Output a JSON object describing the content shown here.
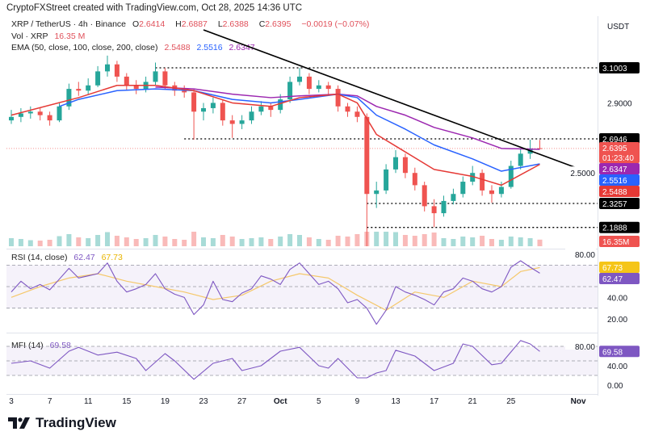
{
  "credit": "CryptoFXStreet created with TradingView.com, Oct 28, 2025 14:36 UTC",
  "currency": "USDT",
  "legend": {
    "symbol": "XRP / TetherUS · 4h · Binance",
    "o_label": "O",
    "o": "2.6414",
    "h_label": "H",
    "h": "2.6887",
    "l_label": "L",
    "l": "2.6388",
    "c_label": "C",
    "c": "2.6395",
    "change": "−0.0019 (−0.07%)",
    "vol_label": "Vol · XRP",
    "vol": "16.35 M",
    "ema_label": "EMA (50, close, 100, close, 200, close)",
    "ema50": "2.5488",
    "ema100": "2.5516",
    "ema200": "2.6347",
    "rsi_label": "RSI (14, close)",
    "rsi": "62.47",
    "rsi_ma": "67.73",
    "mfi_label": "MFI (14)",
    "mfi": "69.58"
  },
  "badges": {
    "level1": "3.1003",
    "level2": "2.6946",
    "last": "2.6395",
    "countdown": "01:23:40",
    "ema200": "2.6347",
    "ema100": "2.5516",
    "ema50": "2.5488",
    "level3": "2.3257",
    "level4": "2.1888",
    "volume": "16.35M",
    "rsi_ma": "67.73",
    "rsi": "62.47",
    "mfi": "69.58"
  },
  "logo_text": "TradingView",
  "colors": {
    "up": "#26a69a",
    "down": "#ef5350",
    "ema50": "#e53935",
    "ema100": "#2962ff",
    "ema200": "#9c27b0",
    "rsi": "#7e57c2",
    "rsi_ma": "#f5c86b",
    "trendline": "#000000"
  },
  "chart_data": {
    "type": "candlestick",
    "title": "XRP / TetherUS · 4h · Binance",
    "x_ticks": [
      [
        "2025-09-03",
        "3"
      ],
      [
        "2025-09-07",
        "7"
      ],
      [
        "2025-09-11",
        "11"
      ],
      [
        "2025-09-15",
        "15"
      ],
      [
        "2025-09-19",
        "19"
      ],
      [
        "2025-09-23",
        "23"
      ],
      [
        "2025-09-27",
        "27"
      ],
      [
        "2025-10-01",
        "Oct"
      ],
      [
        "2025-10-05",
        "5"
      ],
      [
        "2025-10-09",
        "9"
      ],
      [
        "2025-10-13",
        "13"
      ],
      [
        "2025-10-17",
        "17"
      ],
      [
        "2025-10-21",
        "21"
      ],
      [
        "2025-10-25",
        "25"
      ],
      [
        "2025-11-01",
        "Nov"
      ]
    ],
    "price_ticks": [
      "2.9000",
      "2.5000"
    ],
    "price_range": [
      2.08,
      3.386
    ],
    "start_date": "2025-09-03",
    "ohlc": [
      [
        2.8,
        2.86,
        2.78,
        2.82
      ],
      [
        2.82,
        2.87,
        2.79,
        2.84
      ],
      [
        2.84,
        2.88,
        2.81,
        2.85
      ],
      [
        2.85,
        2.87,
        2.8,
        2.83
      ],
      [
        2.83,
        2.85,
        2.77,
        2.8
      ],
      [
        2.8,
        2.9,
        2.79,
        2.88
      ],
      [
        2.88,
        3.01,
        2.86,
        2.98
      ],
      [
        2.98,
        3.02,
        2.94,
        2.97
      ],
      [
        2.97,
        3.04,
        2.95,
        3.0
      ],
      [
        3.0,
        3.11,
        2.99,
        3.08
      ],
      [
        3.08,
        3.17,
        3.05,
        3.12
      ],
      [
        3.12,
        3.14,
        3.02,
        3.05
      ],
      [
        3.05,
        3.07,
        2.97,
        3.0
      ],
      [
        3.0,
        3.03,
        2.95,
        2.98
      ],
      [
        2.98,
        3.05,
        2.96,
        3.02
      ],
      [
        3.02,
        3.13,
        3.0,
        3.08
      ],
      [
        3.08,
        3.1,
        2.98,
        3.0
      ],
      [
        3.0,
        3.02,
        2.94,
        2.97
      ],
      [
        2.97,
        3.0,
        2.93,
        2.96
      ],
      [
        2.96,
        2.98,
        2.69,
        2.85
      ],
      [
        2.85,
        2.9,
        2.8,
        2.87
      ],
      [
        2.87,
        2.93,
        2.84,
        2.9
      ],
      [
        2.9,
        2.92,
        2.77,
        2.8
      ],
      [
        2.8,
        2.83,
        2.7,
        2.78
      ],
      [
        2.78,
        2.83,
        2.75,
        2.8
      ],
      [
        2.8,
        2.88,
        2.78,
        2.85
      ],
      [
        2.85,
        2.91,
        2.83,
        2.88
      ],
      [
        2.88,
        2.9,
        2.82,
        2.86
      ],
      [
        2.86,
        2.95,
        2.84,
        2.92
      ],
      [
        2.92,
        3.05,
        2.9,
        3.02
      ],
      [
        3.02,
        3.1,
        3.0,
        3.05
      ],
      [
        3.05,
        3.07,
        2.95,
        2.98
      ],
      [
        2.98,
        3.03,
        2.96,
        3.0
      ],
      [
        3.0,
        3.02,
        2.95,
        2.98
      ],
      [
        2.98,
        3.0,
        2.85,
        2.88
      ],
      [
        2.88,
        2.9,
        2.82,
        2.85
      ],
      [
        2.85,
        2.88,
        2.79,
        2.82
      ],
      [
        2.82,
        2.84,
        1.8,
        2.38
      ],
      [
        2.38,
        2.45,
        2.3,
        2.4
      ],
      [
        2.4,
        2.55,
        2.38,
        2.52
      ],
      [
        2.52,
        2.63,
        2.5,
        2.59
      ],
      [
        2.59,
        2.61,
        2.47,
        2.5
      ],
      [
        2.5,
        2.53,
        2.4,
        2.43
      ],
      [
        2.43,
        2.45,
        2.28,
        2.31
      ],
      [
        2.31,
        2.35,
        2.19,
        2.27
      ],
      [
        2.27,
        2.37,
        2.25,
        2.34
      ],
      [
        2.34,
        2.41,
        2.32,
        2.38
      ],
      [
        2.38,
        2.48,
        2.36,
        2.45
      ],
      [
        2.45,
        2.54,
        2.43,
        2.5
      ],
      [
        2.5,
        2.52,
        2.37,
        2.4
      ],
      [
        2.4,
        2.43,
        2.33,
        2.38
      ],
      [
        2.38,
        2.45,
        2.36,
        2.42
      ],
      [
        2.42,
        2.57,
        2.41,
        2.54
      ],
      [
        2.54,
        2.64,
        2.52,
        2.61
      ],
      [
        2.61,
        2.69,
        2.58,
        2.64
      ],
      [
        2.6414,
        2.6887,
        2.6388,
        2.6395
      ]
    ],
    "volume_m": [
      20,
      18,
      15,
      14,
      16,
      25,
      30,
      22,
      20,
      28,
      35,
      26,
      22,
      18,
      20,
      28,
      24,
      18,
      16,
      40,
      22,
      20,
      28,
      24,
      18,
      20,
      22,
      18,
      24,
      30,
      28,
      22,
      18,
      16,
      26,
      24,
      30,
      120,
      60,
      40,
      35,
      28,
      26,
      30,
      34,
      20,
      18,
      24,
      22,
      26,
      18,
      16,
      24,
      22,
      20,
      16.35
    ],
    "ema50": [
      [
        "2025-09-03",
        2.83
      ],
      [
        "2025-09-10",
        2.93
      ],
      [
        "2025-09-14",
        3.0
      ],
      [
        "2025-09-18",
        3.0
      ],
      [
        "2025-09-22",
        2.97
      ],
      [
        "2025-09-26",
        2.9
      ],
      [
        "2025-09-30",
        2.88
      ],
      [
        "2025-10-03",
        2.93
      ],
      [
        "2025-10-07",
        2.95
      ],
      [
        "2025-10-09",
        2.9
      ],
      [
        "2025-10-11",
        2.72
      ],
      [
        "2025-10-14",
        2.62
      ],
      [
        "2025-10-17",
        2.52
      ],
      [
        "2025-10-21",
        2.48
      ],
      [
        "2025-10-24",
        2.43
      ],
      [
        "2025-10-28",
        2.5488
      ]
    ],
    "ema100": [
      [
        "2025-09-08",
        2.88
      ],
      [
        "2025-09-10",
        2.92
      ],
      [
        "2025-09-14",
        2.97
      ],
      [
        "2025-09-18",
        2.98
      ],
      [
        "2025-09-22",
        2.97
      ],
      [
        "2025-09-26",
        2.92
      ],
      [
        "2025-09-30",
        2.9
      ],
      [
        "2025-10-03",
        2.92
      ],
      [
        "2025-10-07",
        2.95
      ],
      [
        "2025-10-09",
        2.93
      ],
      [
        "2025-10-11",
        2.83
      ],
      [
        "2025-10-14",
        2.75
      ],
      [
        "2025-10-17",
        2.66
      ],
      [
        "2025-10-21",
        2.58
      ],
      [
        "2025-10-24",
        2.51
      ],
      [
        "2025-10-28",
        2.5516
      ]
    ],
    "ema200": [
      [
        "2025-09-18",
        2.99
      ],
      [
        "2025-09-22",
        2.98
      ],
      [
        "2025-09-26",
        2.95
      ],
      [
        "2025-09-30",
        2.93
      ],
      [
        "2025-10-03",
        2.94
      ],
      [
        "2025-10-07",
        2.95
      ],
      [
        "2025-10-09",
        2.94
      ],
      [
        "2025-10-11",
        2.88
      ],
      [
        "2025-10-14",
        2.83
      ],
      [
        "2025-10-17",
        2.76
      ],
      [
        "2025-10-21",
        2.7
      ],
      [
        "2025-10-24",
        2.64
      ],
      [
        "2025-10-28",
        2.6347
      ]
    ],
    "trendline": [
      [
        "2025-09-23",
        3.317
      ],
      [
        "2025-11-02",
        2.505
      ]
    ],
    "levels": [
      [
        "2025-09-18",
        3.1003
      ],
      [
        "2025-09-21",
        2.6946
      ],
      [
        "2025-10-10",
        2.3257
      ],
      [
        "2025-10-10",
        2.1888
      ]
    ],
    "rsi": {
      "ticks": [
        "80.00",
        "40.00",
        "20.00"
      ],
      "bands": [
        70,
        50,
        30
      ],
      "values": [
        45,
        55,
        48,
        52,
        47,
        57,
        67,
        58,
        60,
        62,
        72,
        55,
        45,
        48,
        52,
        62,
        48,
        43,
        40,
        24,
        33,
        55,
        38,
        36,
        44,
        48,
        60,
        57,
        52,
        66,
        72,
        62,
        52,
        55,
        48,
        35,
        38,
        30,
        15,
        28,
        50,
        45,
        42,
        38,
        33,
        45,
        48,
        58,
        55,
        48,
        45,
        50,
        68,
        74,
        68,
        62.47
      ],
      "ma": [
        [
          "2025-09-03",
          40
        ],
        [
          "2025-09-06",
          50
        ],
        [
          "2025-09-09",
          58
        ],
        [
          "2025-09-12",
          62
        ],
        [
          "2025-09-15",
          55
        ],
        [
          "2025-09-18",
          50
        ],
        [
          "2025-09-21",
          45
        ],
        [
          "2025-09-24",
          38
        ],
        [
          "2025-09-27",
          42
        ],
        [
          "2025-09-30",
          55
        ],
        [
          "2025-10-03",
          62
        ],
        [
          "2025-10-06",
          58
        ],
        [
          "2025-10-09",
          42
        ],
        [
          "2025-10-12",
          28
        ],
        [
          "2025-10-15",
          45
        ],
        [
          "2025-10-18",
          40
        ],
        [
          "2025-10-21",
          55
        ],
        [
          "2025-10-24",
          50
        ],
        [
          "2025-10-26",
          64
        ],
        [
          "2025-10-28",
          67.73
        ]
      ]
    },
    "mfi": {
      "ticks": [
        "80.00",
        "40.00",
        "0.00"
      ],
      "bands": [
        80,
        50,
        20
      ],
      "values": [
        [
          "2025-09-03",
          45
        ],
        [
          "2025-09-05",
          50
        ],
        [
          "2025-09-07",
          35
        ],
        [
          "2025-09-09",
          70
        ],
        [
          "2025-09-10",
          78
        ],
        [
          "2025-09-12",
          62
        ],
        [
          "2025-09-14",
          68
        ],
        [
          "2025-09-16",
          55
        ],
        [
          "2025-09-17",
          30
        ],
        [
          "2025-09-19",
          65
        ],
        [
          "2025-09-20",
          50
        ],
        [
          "2025-09-22",
          12
        ],
        [
          "2025-09-24",
          45
        ],
        [
          "2025-09-26",
          55
        ],
        [
          "2025-09-27",
          30
        ],
        [
          "2025-09-29",
          40
        ],
        [
          "2025-10-01",
          70
        ],
        [
          "2025-10-03",
          78
        ],
        [
          "2025-10-05",
          40
        ],
        [
          "2025-10-06",
          35
        ],
        [
          "2025-10-07",
          55
        ],
        [
          "2025-10-09",
          15
        ],
        [
          "2025-10-10",
          15
        ],
        [
          "2025-10-11",
          25
        ],
        [
          "2025-10-12",
          30
        ],
        [
          "2025-10-13",
          72
        ],
        [
          "2025-10-15",
          60
        ],
        [
          "2025-10-17",
          30
        ],
        [
          "2025-10-19",
          45
        ],
        [
          "2025-10-20",
          85
        ],
        [
          "2025-10-21",
          80
        ],
        [
          "2025-10-23",
          42
        ],
        [
          "2025-10-24",
          45
        ],
        [
          "2025-10-26",
          92
        ],
        [
          "2025-10-27",
          85
        ],
        [
          "2025-10-28",
          69.58
        ]
      ]
    }
  }
}
